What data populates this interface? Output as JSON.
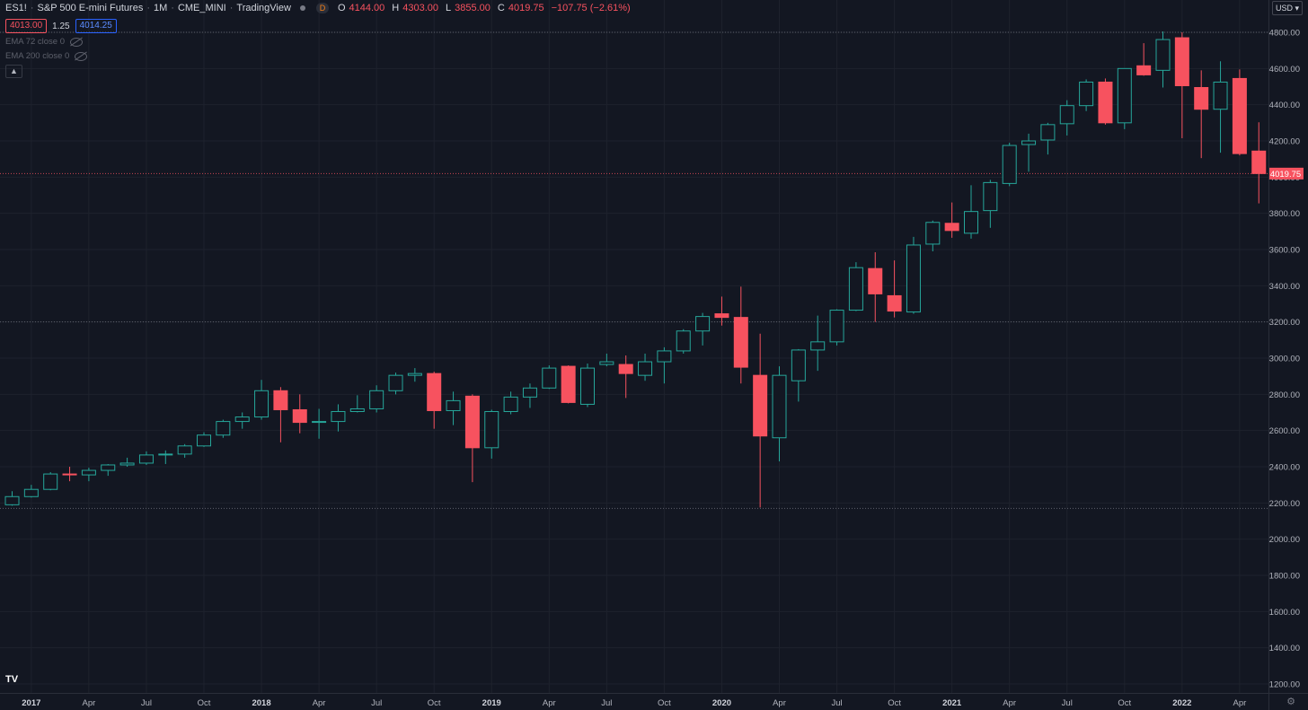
{
  "header": {
    "symbol": "ES1!",
    "title": "S&P 500 E-mini Futures",
    "interval": "1M",
    "exchange": "CME_MINI",
    "source": "TradingView",
    "badge": "D",
    "ohlc": {
      "o_label": "O",
      "o": "4144.00",
      "h_label": "H",
      "h": "4303.00",
      "l_label": "L",
      "l": "3855.00",
      "c_label": "C",
      "c": "4019.75",
      "change": "−107.75 (−2.61%)"
    },
    "bid": "4013.00",
    "spread": "1.25",
    "ask": "4014.25",
    "indicators": [
      "EMA 72 close 0",
      "EMA 200 close 0"
    ],
    "currency": "USD"
  },
  "colors": {
    "background": "#131722",
    "up": "#26a69a",
    "down": "#f7525f",
    "grid": "#1e222d",
    "axis_text": "#b2b5be"
  },
  "chart_data": {
    "type": "candlestick",
    "title": "",
    "ylim": [
      1150,
      4850
    ],
    "y_ticks": [
      4800,
      4600,
      4400,
      4200,
      4000,
      3800,
      3600,
      3400,
      3200,
      3000,
      2800,
      2600,
      2400,
      2200,
      2000,
      1800,
      1600,
      1400,
      1200
    ],
    "x_ticks": [
      "2017",
      "Apr",
      "Jul",
      "Oct",
      "2018",
      "Apr",
      "Jul",
      "Oct",
      "2019",
      "Apr",
      "Jul",
      "Oct",
      "2020",
      "Apr",
      "Jul",
      "Oct",
      "2021",
      "Apr",
      "Jul",
      "Oct",
      "2022",
      "Apr"
    ],
    "last_price_label": "4019.75",
    "horizontal_lines": [
      4800,
      3200,
      2170
    ],
    "candles": [
      {
        "date": "2016-12",
        "o": 2190,
        "h": 2265,
        "l": 2185,
        "c": 2235
      },
      {
        "date": "2017-01",
        "o": 2235,
        "h": 2300,
        "l": 2230,
        "c": 2275
      },
      {
        "date": "2017-02",
        "o": 2275,
        "h": 2370,
        "l": 2270,
        "c": 2360
      },
      {
        "date": "2017-03",
        "o": 2360,
        "h": 2400,
        "l": 2320,
        "c": 2355
      },
      {
        "date": "2017-04",
        "o": 2355,
        "h": 2395,
        "l": 2320,
        "c": 2380
      },
      {
        "date": "2017-05",
        "o": 2380,
        "h": 2415,
        "l": 2350,
        "c": 2410
      },
      {
        "date": "2017-06",
        "o": 2410,
        "h": 2450,
        "l": 2400,
        "c": 2420
      },
      {
        "date": "2017-07",
        "o": 2420,
        "h": 2485,
        "l": 2410,
        "c": 2465
      },
      {
        "date": "2017-08",
        "o": 2465,
        "h": 2490,
        "l": 2415,
        "c": 2470
      },
      {
        "date": "2017-09",
        "o": 2470,
        "h": 2525,
        "l": 2450,
        "c": 2515
      },
      {
        "date": "2017-10",
        "o": 2515,
        "h": 2590,
        "l": 2510,
        "c": 2575
      },
      {
        "date": "2017-11",
        "o": 2575,
        "h": 2660,
        "l": 2560,
        "c": 2650
      },
      {
        "date": "2017-12",
        "o": 2650,
        "h": 2700,
        "l": 2610,
        "c": 2675
      },
      {
        "date": "2018-01",
        "o": 2675,
        "h": 2880,
        "l": 2660,
        "c": 2820
      },
      {
        "date": "2018-02",
        "o": 2820,
        "h": 2840,
        "l": 2535,
        "c": 2715
      },
      {
        "date": "2018-03",
        "o": 2715,
        "h": 2800,
        "l": 2585,
        "c": 2645
      },
      {
        "date": "2018-04",
        "o": 2645,
        "h": 2720,
        "l": 2555,
        "c": 2650
      },
      {
        "date": "2018-05",
        "o": 2650,
        "h": 2745,
        "l": 2595,
        "c": 2705
      },
      {
        "date": "2018-06",
        "o": 2705,
        "h": 2795,
        "l": 2700,
        "c": 2720
      },
      {
        "date": "2018-07",
        "o": 2720,
        "h": 2850,
        "l": 2700,
        "c": 2820
      },
      {
        "date": "2018-08",
        "o": 2820,
        "h": 2920,
        "l": 2800,
        "c": 2905
      },
      {
        "date": "2018-09",
        "o": 2905,
        "h": 2945,
        "l": 2870,
        "c": 2915
      },
      {
        "date": "2018-10",
        "o": 2915,
        "h": 2925,
        "l": 2610,
        "c": 2710
      },
      {
        "date": "2018-11",
        "o": 2710,
        "h": 2815,
        "l": 2630,
        "c": 2765
      },
      {
        "date": "2018-12",
        "o": 2790,
        "h": 2800,
        "l": 2315,
        "c": 2505
      },
      {
        "date": "2019-01",
        "o": 2505,
        "h": 2715,
        "l": 2445,
        "c": 2705
      },
      {
        "date": "2019-02",
        "o": 2705,
        "h": 2815,
        "l": 2690,
        "c": 2785
      },
      {
        "date": "2019-03",
        "o": 2785,
        "h": 2860,
        "l": 2725,
        "c": 2835
      },
      {
        "date": "2019-04",
        "o": 2835,
        "h": 2960,
        "l": 2830,
        "c": 2945
      },
      {
        "date": "2019-05",
        "o": 2955,
        "h": 2960,
        "l": 2750,
        "c": 2755
      },
      {
        "date": "2019-06",
        "o": 2745,
        "h": 2970,
        "l": 2730,
        "c": 2945
      },
      {
        "date": "2019-07",
        "o": 2965,
        "h": 3025,
        "l": 2955,
        "c": 2980
      },
      {
        "date": "2019-08",
        "o": 2965,
        "h": 3015,
        "l": 2780,
        "c": 2915
      },
      {
        "date": "2019-09",
        "o": 2905,
        "h": 3025,
        "l": 2875,
        "c": 2980
      },
      {
        "date": "2019-10",
        "o": 2980,
        "h": 3060,
        "l": 2860,
        "c": 3040
      },
      {
        "date": "2019-11",
        "o": 3040,
        "h": 3160,
        "l": 3025,
        "c": 3150
      },
      {
        "date": "2019-12",
        "o": 3150,
        "h": 3250,
        "l": 3070,
        "c": 3230
      },
      {
        "date": "2020-01",
        "o": 3245,
        "h": 3340,
        "l": 3180,
        "c": 3225
      },
      {
        "date": "2020-02",
        "o": 3225,
        "h": 3395,
        "l": 2860,
        "c": 2950
      },
      {
        "date": "2020-03",
        "o": 2905,
        "h": 3135,
        "l": 2175,
        "c": 2570
      },
      {
        "date": "2020-04",
        "o": 2560,
        "h": 2955,
        "l": 2430,
        "c": 2905
      },
      {
        "date": "2020-05",
        "o": 2875,
        "h": 3050,
        "l": 2760,
        "c": 3045
      },
      {
        "date": "2020-06",
        "o": 3045,
        "h": 3235,
        "l": 2930,
        "c": 3090
      },
      {
        "date": "2020-07",
        "o": 3090,
        "h": 3270,
        "l": 3070,
        "c": 3265
      },
      {
        "date": "2020-08",
        "o": 3265,
        "h": 3530,
        "l": 3260,
        "c": 3500
      },
      {
        "date": "2020-09",
        "o": 3495,
        "h": 3585,
        "l": 3200,
        "c": 3355
      },
      {
        "date": "2020-10",
        "o": 3345,
        "h": 3540,
        "l": 3225,
        "c": 3260
      },
      {
        "date": "2020-11",
        "o": 3255,
        "h": 3670,
        "l": 3245,
        "c": 3625
      },
      {
        "date": "2020-12",
        "o": 3630,
        "h": 3760,
        "l": 3590,
        "c": 3750
      },
      {
        "date": "2021-01",
        "o": 3745,
        "h": 3860,
        "l": 3665,
        "c": 3705
      },
      {
        "date": "2021-02",
        "o": 3690,
        "h": 3955,
        "l": 3660,
        "c": 3810
      },
      {
        "date": "2021-03",
        "o": 3815,
        "h": 3985,
        "l": 3720,
        "c": 3970
      },
      {
        "date": "2021-04",
        "o": 3965,
        "h": 4190,
        "l": 3950,
        "c": 4175
      },
      {
        "date": "2021-05",
        "o": 4180,
        "h": 4240,
        "l": 4030,
        "c": 4200
      },
      {
        "date": "2021-06",
        "o": 4205,
        "h": 4300,
        "l": 4125,
        "c": 4290
      },
      {
        "date": "2021-07",
        "o": 4295,
        "h": 4425,
        "l": 4230,
        "c": 4395
      },
      {
        "date": "2021-08",
        "o": 4395,
        "h": 4540,
        "l": 4365,
        "c": 4525
      },
      {
        "date": "2021-09",
        "o": 4525,
        "h": 4545,
        "l": 4290,
        "c": 4300
      },
      {
        "date": "2021-10",
        "o": 4300,
        "h": 4600,
        "l": 4265,
        "c": 4600
      },
      {
        "date": "2021-11",
        "o": 4615,
        "h": 4740,
        "l": 4560,
        "c": 4565
      },
      {
        "date": "2021-12",
        "o": 4590,
        "h": 4805,
        "l": 4495,
        "c": 4760
      },
      {
        "date": "2022-01",
        "o": 4770,
        "h": 4800,
        "l": 4215,
        "c": 4505
      },
      {
        "date": "2022-02",
        "o": 4495,
        "h": 4590,
        "l": 4105,
        "c": 4375
      },
      {
        "date": "2022-03",
        "o": 4375,
        "h": 4640,
        "l": 4135,
        "c": 4525
      },
      {
        "date": "2022-04",
        "o": 4545,
        "h": 4595,
        "l": 4120,
        "c": 4130
      },
      {
        "date": "2022-05",
        "o": 4144,
        "h": 4303,
        "l": 3855,
        "c": 4019.75
      }
    ]
  }
}
